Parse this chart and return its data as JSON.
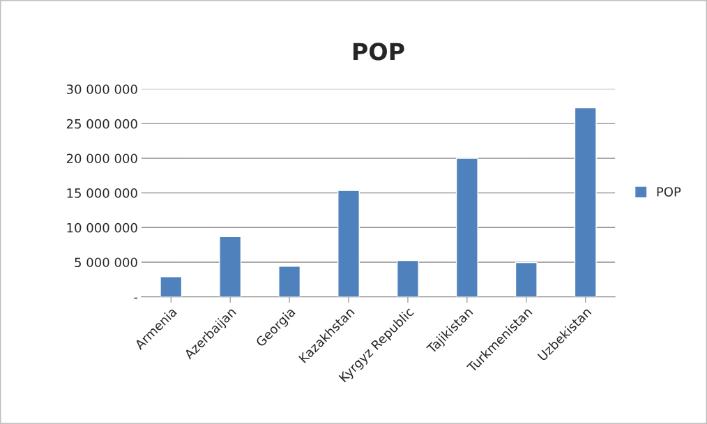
{
  "chart_data": {
    "type": "bar",
    "title": "POP",
    "categories": [
      "Armenia",
      "Azerbaijan",
      "Georgia",
      "Kazakhstan",
      "Kyrgyz Republic",
      "Tajikistan",
      "Turkmenistan",
      "Uzbekistan"
    ],
    "series": [
      {
        "name": "POP",
        "color": "#4f81bd",
        "values": [
          2900000,
          8700000,
          4400000,
          15350000,
          5250000,
          20000000,
          4950000,
          27300000
        ]
      }
    ],
    "ylim": [
      0,
      30000000
    ],
    "yticks": [
      {
        "value": 0,
        "label": "-"
      },
      {
        "value": 5000000,
        "label": "5 000 000"
      },
      {
        "value": 10000000,
        "label": "10 000 000"
      },
      {
        "value": 15000000,
        "label": "15 000 000"
      },
      {
        "value": 20000000,
        "label": "20 000 000"
      },
      {
        "value": 25000000,
        "label": "25 000 000"
      },
      {
        "value": 30000000,
        "label": "30 000 000"
      }
    ],
    "grid": "y",
    "legend": "right"
  }
}
